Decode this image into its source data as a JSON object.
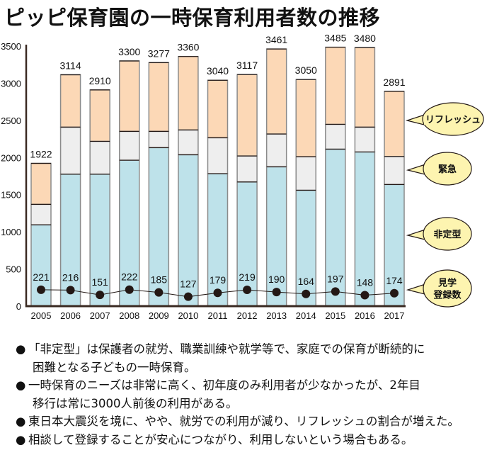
{
  "title": "ピッピ保育園の一時保育利用者数の推移",
  "chart_data": {
    "type": "bar",
    "stacked": true,
    "title": "ピッピ保育園の一時保育利用者数の推移",
    "xlabel": "",
    "ylabel": "",
    "ylim": [
      0,
      3500
    ],
    "yticks": [
      0,
      500,
      1000,
      1500,
      2000,
      2500,
      3000,
      3500
    ],
    "grid": false,
    "categories": [
      "2005",
      "2006",
      "2007",
      "2008",
      "2009",
      "2010",
      "2011",
      "2012",
      "2013",
      "2014",
      "2015",
      "2016",
      "2017"
    ],
    "series": [
      {
        "name": "非定型",
        "color": "#bee2ea",
        "values": [
          1094,
          1776,
          1776,
          1964,
          2133,
          2037,
          1783,
          1671,
          1875,
          1560,
          2113,
          2075,
          1637
        ]
      },
      {
        "name": "緊急",
        "color": "#eeeeee",
        "values": [
          276,
          633,
          442,
          388,
          219,
          334,
          483,
          350,
          442,
          451,
          334,
          334,
          377
        ]
      },
      {
        "name": "リフレッシュ",
        "color": "#fcd8b6",
        "values": [
          552,
          705,
          692,
          948,
          925,
          989,
          774,
          1096,
          1144,
          1039,
          1038,
          1071,
          877
        ]
      }
    ],
    "totals": [
      1922,
      3114,
      2910,
      3300,
      3277,
      3360,
      3040,
      3117,
      3461,
      3050,
      3485,
      3480,
      2891
    ],
    "line_series": {
      "name": "見学登録数",
      "color": "#231815",
      "values": [
        221,
        216,
        151,
        222,
        185,
        127,
        179,
        219,
        190,
        164,
        197,
        148,
        174
      ]
    },
    "legend": {
      "placement": "right",
      "style": "speech-bubbles",
      "bubble_color": "#fdf4b0",
      "items": [
        {
          "label": "リフレッシュ",
          "lines": [
            "リフレッシュ"
          ],
          "value_anchor": 2600
        },
        {
          "label": "緊急",
          "lines": [
            "緊急"
          ],
          "value_anchor": 1850
        },
        {
          "label": "非定型",
          "lines": [
            "非定型"
          ],
          "value_anchor": 1000
        },
        {
          "label": "見学登録数",
          "lines": [
            "見学",
            "登録数"
          ],
          "value_anchor": 170
        }
      ]
    }
  },
  "notes": [
    {
      "bullet": "●",
      "lines": [
        "「非定型」は保護者の就労、職業訓練や就学等で、家庭での保育が断続的に",
        "困難となる子どもの一時保育。"
      ]
    },
    {
      "bullet": "●",
      "lines": [
        "一時保育のニーズは非常に高く、初年度のみ利用者が少なかったが、2年目",
        "移行は常に3000人前後の利用がある。"
      ]
    },
    {
      "bullet": "●",
      "lines": [
        "東日本大震災を境に、やや、就労での利用が減り、リフレッシュの割合が増えた。"
      ]
    },
    {
      "bullet": "●",
      "lines": [
        "相談して登録することが安心につながり、利用しないという場合もある。"
      ]
    }
  ]
}
